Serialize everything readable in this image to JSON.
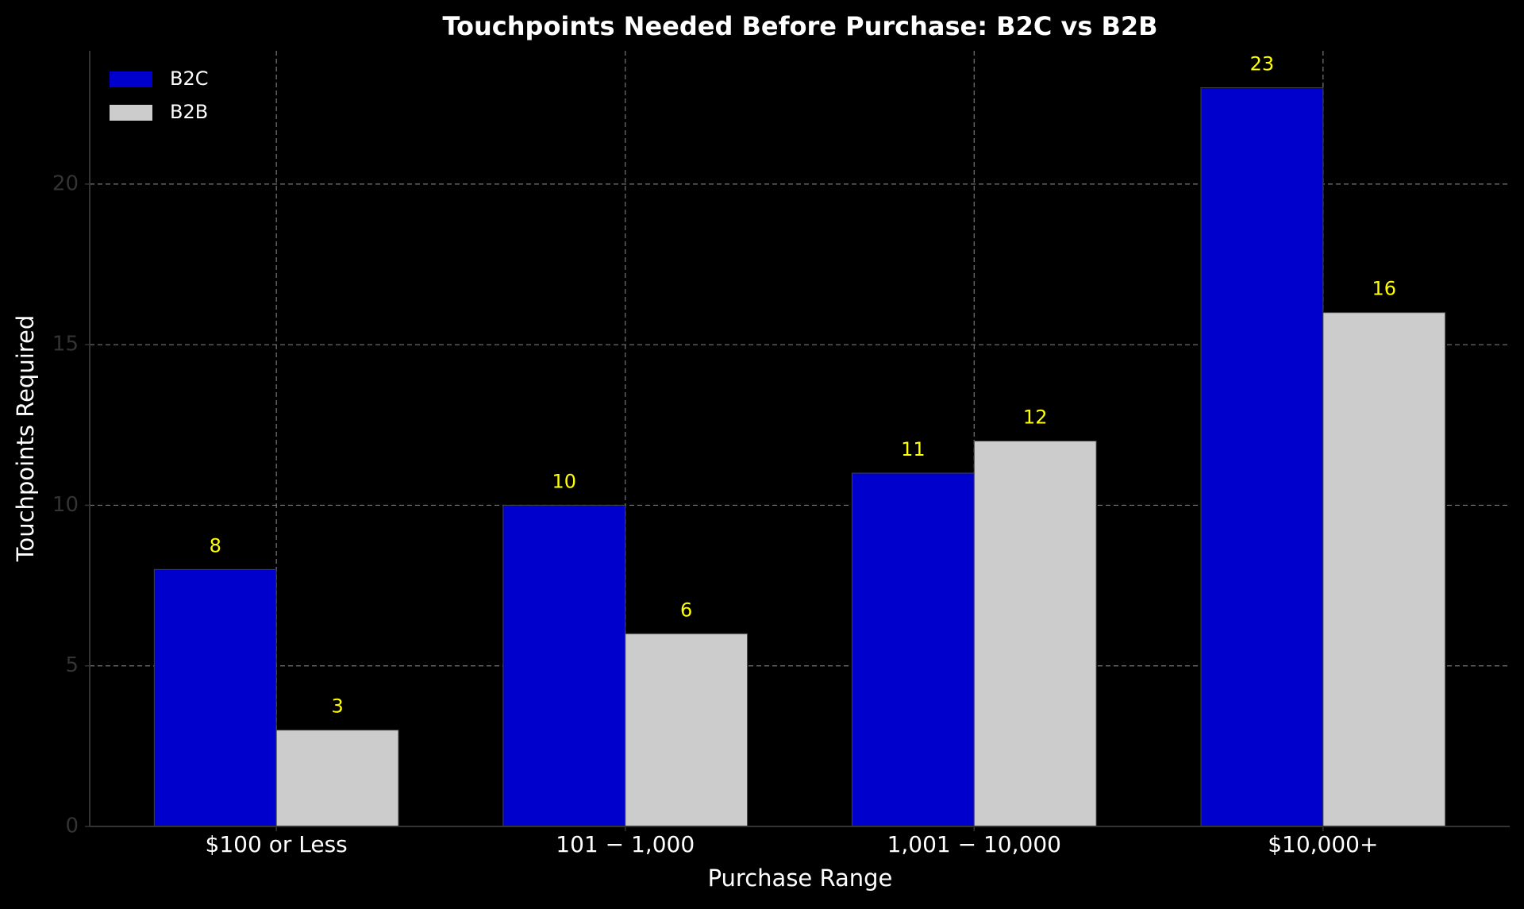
{
  "chart_data": {
    "type": "bar",
    "title": "Touchpoints Needed Before Purchase: B2C vs B2B",
    "x_label": "Purchase Range",
    "y_label": "Touchpoints Required",
    "categories": [
      "$100 or Less",
      "101 − 1,000",
      "1,001 − 10,000",
      "$10,000+"
    ],
    "series": [
      {
        "name": "B2C",
        "color": "#0000cd",
        "values": [
          8,
          10,
          11,
          23
        ]
      },
      {
        "name": "B2B",
        "color": "#cccccc",
        "values": [
          3,
          6,
          12,
          16
        ]
      }
    ],
    "ylim": [
      0,
      24.15
    ],
    "yticks": [
      0,
      5,
      10,
      15,
      20
    ],
    "grid": true,
    "legend": "upper-left",
    "value_label_color": "#ffff00"
  }
}
